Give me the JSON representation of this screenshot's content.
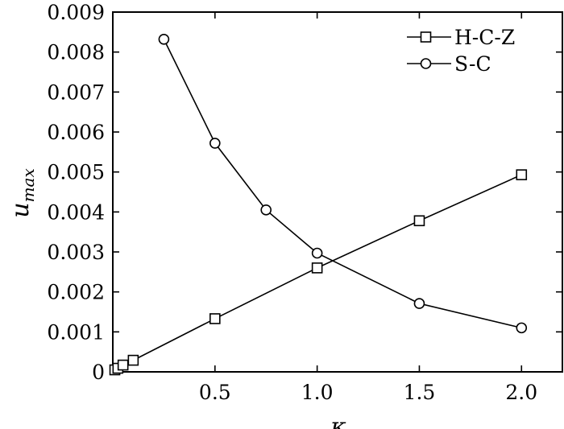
{
  "chart_data": {
    "type": "line",
    "title": "",
    "xlabel": "κ",
    "ylabel_main": "u",
    "ylabel_sub": "max",
    "xlim": [
      0,
      2.2
    ],
    "ylim": [
      0,
      0.009
    ],
    "x_ticks": [
      0.5,
      1.0,
      1.5,
      2.0
    ],
    "x_tick_labels": [
      "0.5",
      "1.0",
      "1.5",
      "2.0"
    ],
    "y_ticks": [
      0,
      0.001,
      0.002,
      0.003,
      0.004,
      0.005,
      0.006,
      0.007,
      0.008,
      0.009
    ],
    "y_tick_labels": [
      "0",
      "0.001",
      "0.002",
      "0.003",
      "0.004",
      "0.005",
      "0.006",
      "0.007",
      "0.008",
      "0.009"
    ],
    "grid": false,
    "legend_position": "top-right",
    "series": [
      {
        "name": "H-C-Z",
        "marker": "square",
        "x": [
          0.01,
          0.025,
          0.05,
          0.1,
          0.5,
          1.0,
          1.5,
          2.0
        ],
        "y": [
          5e-05,
          9e-05,
          0.00017,
          0.00029,
          0.00133,
          0.0026,
          0.00378,
          0.00493
        ]
      },
      {
        "name": "S-C",
        "marker": "circle",
        "x": [
          0.25,
          0.5,
          0.75,
          1.0,
          1.5,
          2.0
        ],
        "y": [
          0.00832,
          0.00572,
          0.00405,
          0.00297,
          0.00171,
          0.0011
        ]
      }
    ]
  }
}
